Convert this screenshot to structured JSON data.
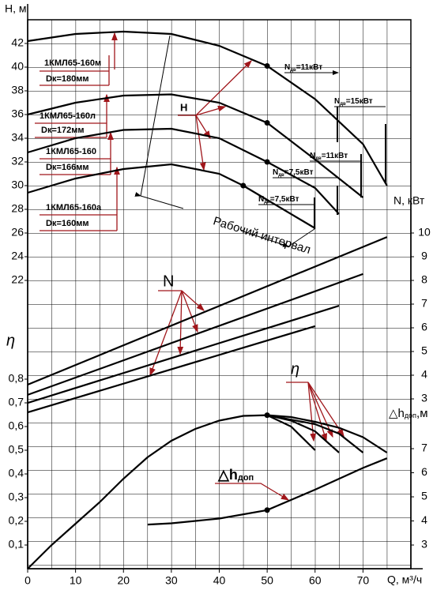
{
  "chart_data": {
    "type": "line",
    "xlabel": "Q, м³/ч",
    "xlim": [
      0,
      80
    ],
    "xticks": [
      0,
      10,
      20,
      30,
      40,
      50,
      60,
      70
    ],
    "ylabel": "H, м",
    "ylim": [
      22,
      44
    ],
    "yticks": [
      22,
      24,
      26,
      28,
      30,
      32,
      34,
      36,
      38,
      40,
      42
    ],
    "y2label": "N, кВт",
    "y2lim": [
      3,
      10
    ],
    "y2ticks": [
      3,
      4,
      5,
      6,
      7,
      8,
      9,
      10
    ],
    "eta_axis": {
      "label": "η",
      "lim": [
        0,
        0.8
      ],
      "ticks": [
        {
          "value": 0.1,
          "label": "0,1"
        },
        {
          "value": 0.2,
          "label": "0,2"
        },
        {
          "value": 0.3,
          "label": "0,3"
        },
        {
          "value": 0.4,
          "label": "0,4"
        },
        {
          "value": 0.5,
          "label": "0,5"
        },
        {
          "value": 0.6,
          "label": "0,6"
        },
        {
          "value": 0.7,
          "label": "0,7"
        },
        {
          "value": 0.8,
          "label": "0,8"
        }
      ]
    },
    "npsh_axis": {
      "label": {
        "main": "△h",
        "sub": "доп",
        "rest": ",м"
      },
      "lim": [
        3,
        7
      ],
      "ticks": [
        3,
        4,
        5,
        6,
        7
      ]
    },
    "series": [
      {
        "name": "1КМЛ65-160м",
        "dk": "Dк=180мм",
        "axis": "y",
        "color": "#000000",
        "x": [
          0,
          10,
          20,
          30,
          40,
          50,
          60,
          70,
          75
        ],
        "values": [
          42.2,
          42.8,
          43.0,
          42.8,
          41.8,
          40.1,
          37.3,
          33.5,
          30.0
        ]
      },
      {
        "name": "1КМЛ65-160л",
        "dk": "Dк=172мм",
        "axis": "y",
        "color": "#000000",
        "x": [
          0,
          10,
          20,
          30,
          40,
          50,
          60,
          70
        ],
        "values": [
          36.0,
          37.0,
          37.6,
          37.7,
          37.0,
          35.3,
          32.2,
          29.0
        ]
      },
      {
        "name": "1КМЛ65-160",
        "dk": "Dк=166мм",
        "axis": "y",
        "color": "#000000",
        "x": [
          0,
          10,
          20,
          30,
          40,
          50,
          60,
          65
        ],
        "values": [
          32.8,
          34.0,
          34.7,
          34.8,
          34.0,
          32.0,
          29.8,
          27.6
        ]
      },
      {
        "name": "1КМЛ65-160а",
        "dk": "Dк=160мм",
        "axis": "y",
        "color": "#000000",
        "x": [
          0,
          10,
          20,
          30,
          40,
          45,
          50,
          60
        ],
        "values": [
          29.4,
          30.6,
          31.4,
          31.8,
          31.0,
          30.0,
          28.8,
          26.4
        ]
      },
      {
        "axis": "y2",
        "color": "#000000",
        "x": [
          0,
          75
        ],
        "values": [
          3.6,
          9.83
        ]
      },
      {
        "axis": "y2",
        "color": "#000000",
        "x": [
          0,
          70
        ],
        "values": [
          3.17,
          8.27
        ]
      },
      {
        "axis": "y2",
        "color": "#000000",
        "x": [
          0,
          65
        ],
        "values": [
          2.83,
          6.93
        ]
      },
      {
        "axis": "y2",
        "color": "#000000",
        "x": [
          0,
          60
        ],
        "values": [
          2.43,
          6.07
        ]
      },
      {
        "axis": "eta",
        "color": "#000000",
        "x": [
          0,
          5,
          10,
          15,
          20,
          25,
          30,
          35,
          40,
          45,
          50,
          55,
          60,
          65,
          70,
          75
        ],
        "values": [
          0,
          0.1,
          0.19,
          0.28,
          0.38,
          0.47,
          0.54,
          0.59,
          0.625,
          0.645,
          0.648,
          0.64,
          0.62,
          0.595,
          0.555,
          0.49
        ]
      },
      {
        "axis": "eta",
        "color": "#000000",
        "x": [
          50,
          55,
          60
        ],
        "values": [
          0.648,
          0.6,
          0.5
        ]
      },
      {
        "axis": "eta",
        "color": "#000000",
        "x": [
          50,
          55,
          60,
          65
        ],
        "values": [
          0.648,
          0.625,
          0.58,
          0.49
        ]
      },
      {
        "axis": "eta",
        "color": "#000000",
        "x": [
          50,
          60,
          65,
          70
        ],
        "values": [
          0.648,
          0.61,
          0.57,
          0.49
        ]
      },
      {
        "axis": "npsh",
        "color": "#000000",
        "x": [
          25,
          30,
          40,
          50,
          60,
          70,
          75
        ],
        "values": [
          3.85,
          3.9,
          4.1,
          4.45,
          5.3,
          6.2,
          6.6
        ]
      }
    ],
    "points": [
      {
        "axis": "y",
        "x": [
          50,
          50,
          50,
          45
        ],
        "values": [
          40.1,
          35.3,
          32.0,
          30.0
        ]
      },
      {
        "axis": "eta",
        "x": [
          50
        ],
        "values": [
          0.648
        ]
      },
      {
        "axis": "npsh",
        "x": [
          50
        ],
        "values": [
          4.45
        ]
      }
    ],
    "motor_labels": [
      {
        "main": "N",
        "sub": "дв",
        "rest": "=11кВт"
      },
      {
        "main": "N",
        "sub": "дв",
        "rest": "=15кВт"
      },
      {
        "main": "N",
        "sub": "дв",
        "rest": "=11кВт"
      },
      {
        "main": "N",
        "sub": "дв",
        "rest": "=7,5кВт"
      },
      {
        "main": "N",
        "sub": "дв",
        "rest": "=7,5кВт"
      }
    ],
    "annotations": {
      "interval": "Рабочий интервал",
      "h": "H",
      "n": "N",
      "eta": "η",
      "npsh": {
        "main": "△h",
        "sub": "доп"
      }
    }
  }
}
